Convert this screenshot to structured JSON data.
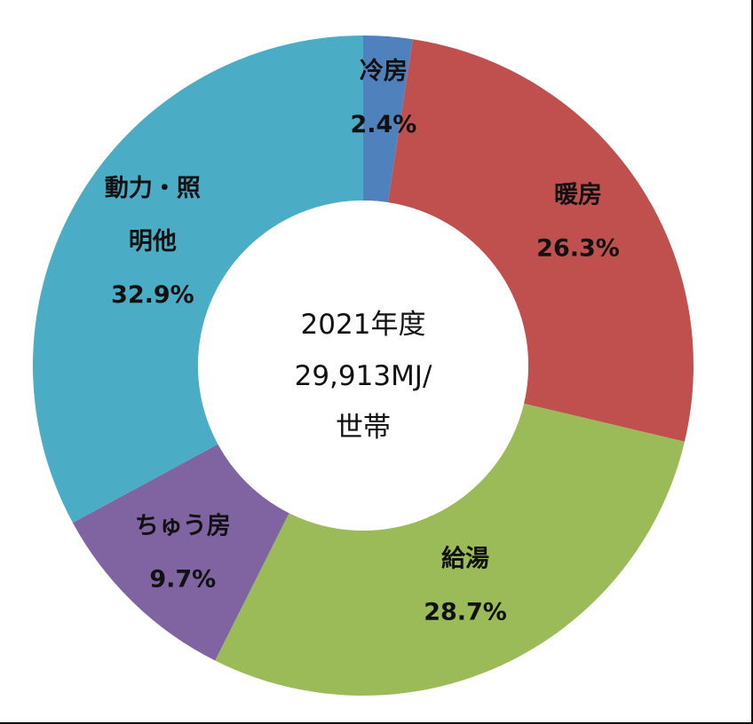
{
  "chart_data": {
    "type": "pie",
    "donut": true,
    "center_text": [
      "2021年度",
      "29,913MJ/",
      "世帯"
    ],
    "unit": "%",
    "slices": [
      {
        "name": "冷房",
        "label_lines": [
          "冷房"
        ],
        "value": 2.4,
        "value_label": "2.4%",
        "color": "#4F81BD"
      },
      {
        "name": "暖房",
        "label_lines": [
          "暖房"
        ],
        "value": 26.3,
        "value_label": "26.3%",
        "color": "#C0504D"
      },
      {
        "name": "給湯",
        "label_lines": [
          "給湯"
        ],
        "value": 28.7,
        "value_label": "28.7%",
        "color": "#9BBB59"
      },
      {
        "name": "ちゅう房",
        "label_lines": [
          "ちゅう房"
        ],
        "value": 9.7,
        "value_label": "9.7%",
        "color": "#8064A2"
      },
      {
        "name": "動力・照明他",
        "label_lines": [
          "動力・照",
          "明他"
        ],
        "value": 32.9,
        "value_label": "32.9%",
        "color": "#4BACC6"
      }
    ],
    "start": "12 o'clock",
    "direction": "clockwise",
    "legend": "none"
  }
}
